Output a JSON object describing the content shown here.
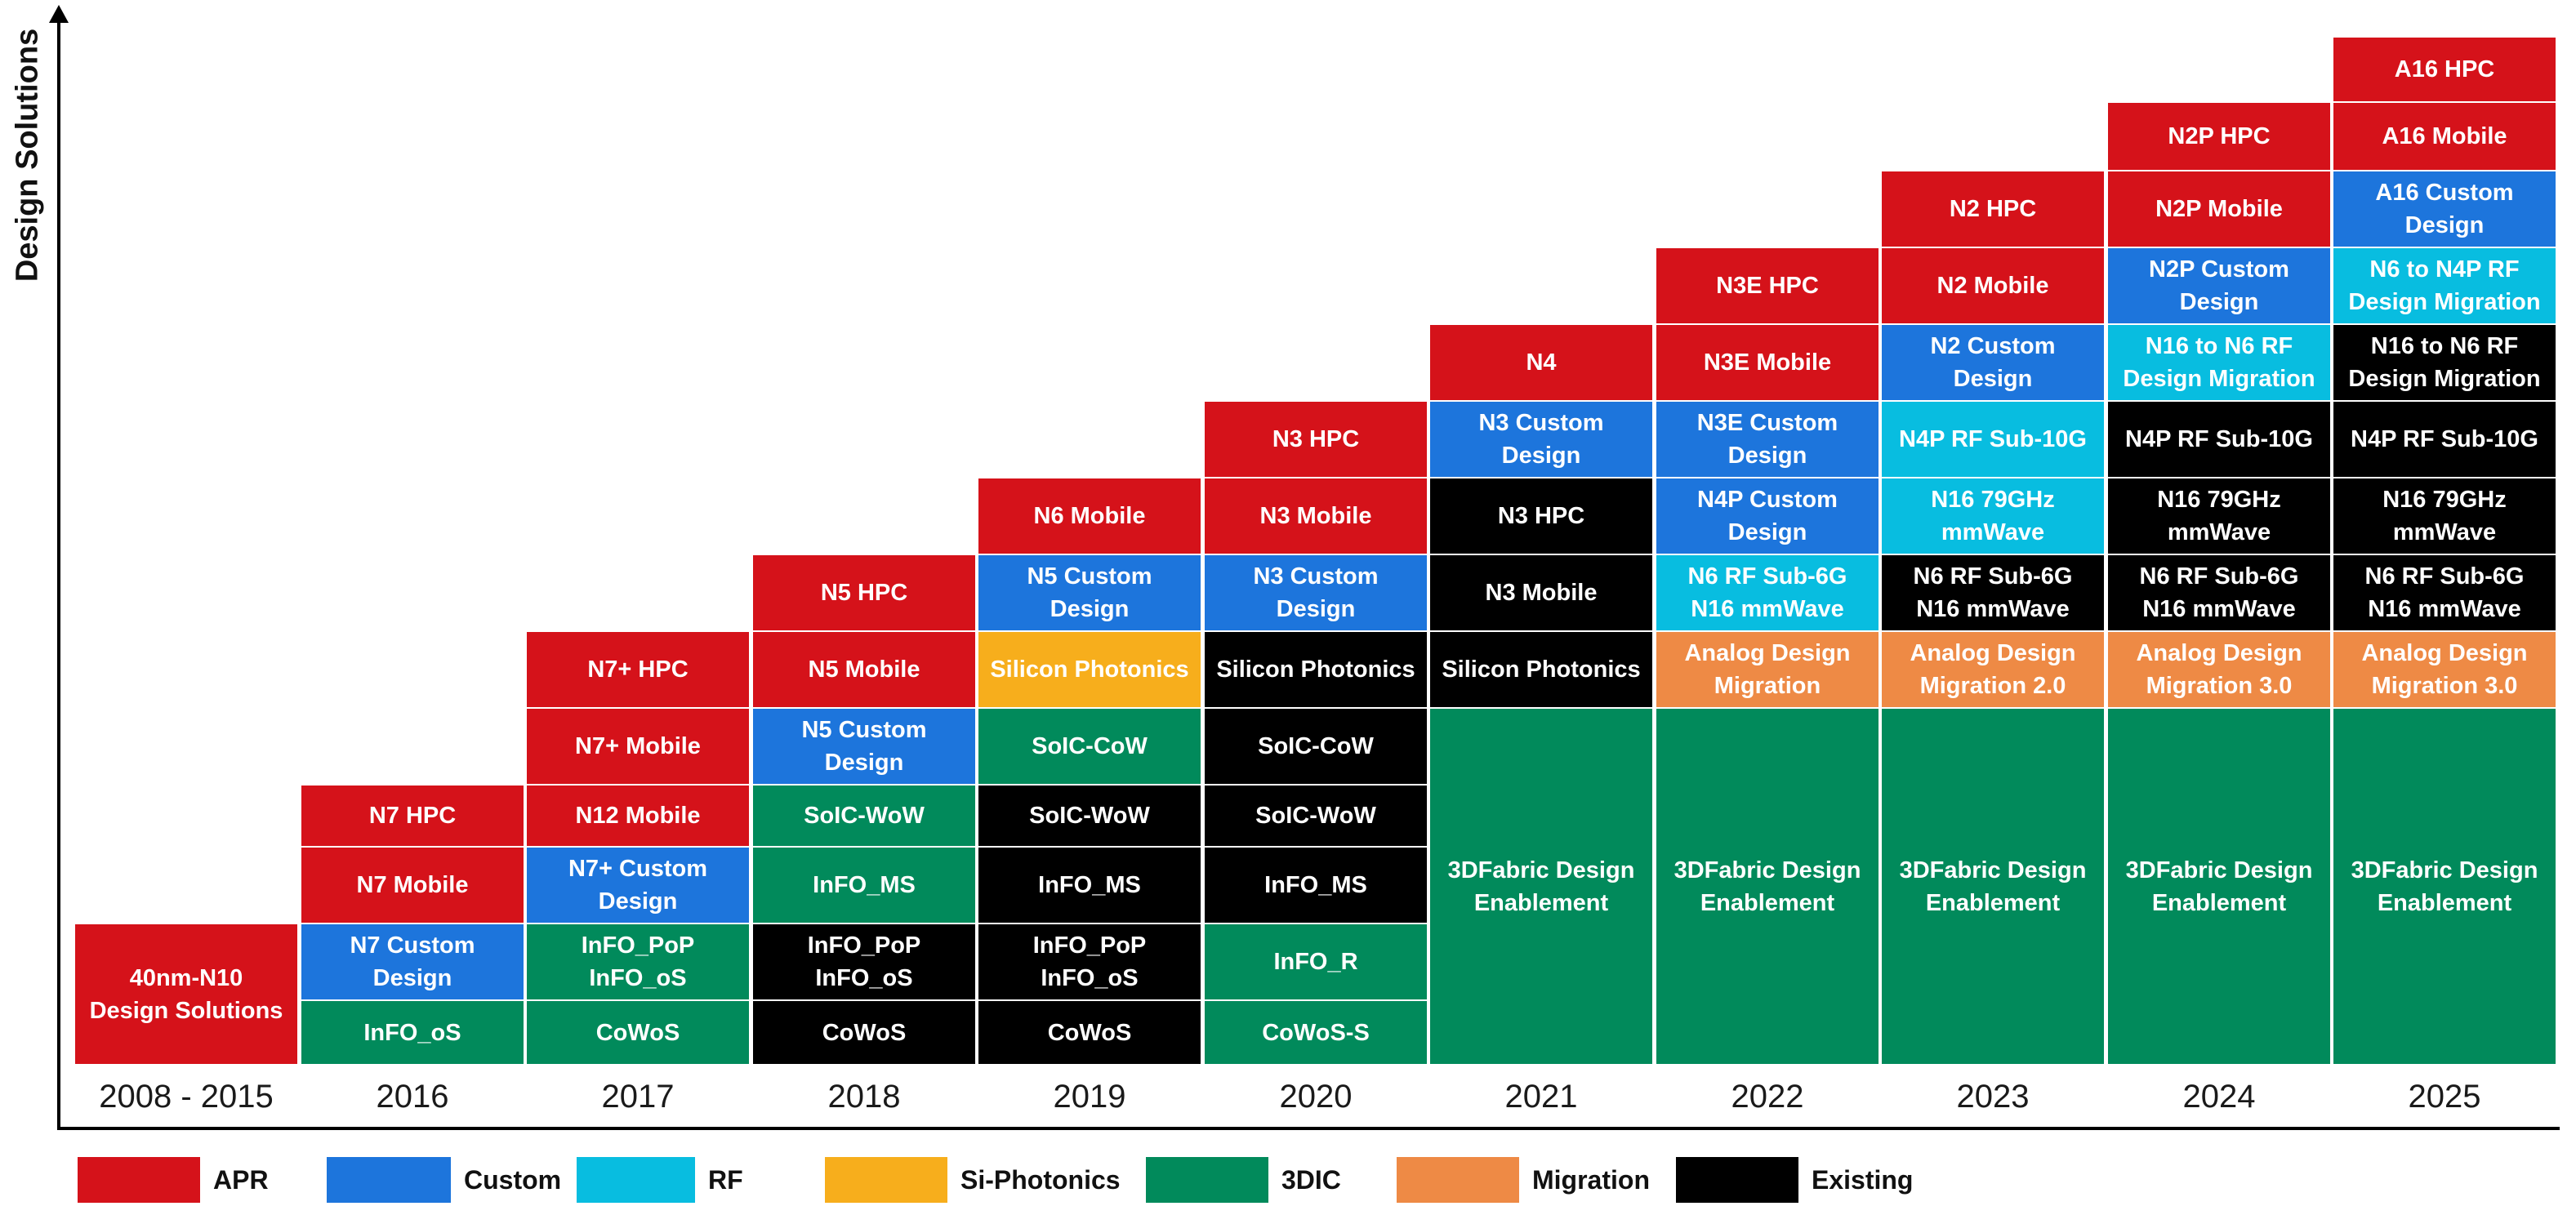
{
  "y_axis_label": "Design Solutions",
  "colors": {
    "APR": "#d5121a",
    "Custom": "#1d75dc",
    "RF": "#08bde0",
    "Si-Photonics": "#f7ae1c",
    "3DIC": "#018a5b",
    "Migration": "#ee8a45",
    "Existing": "#000000"
  },
  "legend": [
    {
      "label": "APR",
      "category": "APR"
    },
    {
      "label": "Custom",
      "category": "Custom"
    },
    {
      "label": "RF",
      "category": "RF"
    },
    {
      "label": "Si-Photonics",
      "category": "Si-Photonics"
    },
    {
      "label": "3DIC",
      "category": "3DIC"
    },
    {
      "label": "Migration",
      "category": "Migration"
    },
    {
      "label": "Existing",
      "category": "Existing"
    }
  ],
  "columns": [
    {
      "year": "2008 - 2015",
      "cells": [
        {
          "text": "40nm-N10\nDesign Solutions",
          "category": "APR",
          "span": 2
        }
      ]
    },
    {
      "year": "2016",
      "cells": [
        {
          "text": "InFO_oS",
          "category": "3DIC"
        },
        {
          "text": "N7 Custom\nDesign",
          "category": "Custom"
        },
        {
          "text": "N7 Mobile",
          "category": "APR"
        },
        {
          "text": "N7 HPC",
          "category": "APR"
        }
      ]
    },
    {
      "year": "2017",
      "cells": [
        {
          "text": "CoWoS",
          "category": "3DIC"
        },
        {
          "text": "InFO_PoP\nInFO_oS",
          "category": "3DIC"
        },
        {
          "text": "N7+ Custom\nDesign",
          "category": "Custom"
        },
        {
          "text": "N12 Mobile",
          "category": "APR"
        },
        {
          "text": "N7+ Mobile",
          "category": "APR"
        },
        {
          "text": "N7+ HPC",
          "category": "APR"
        }
      ]
    },
    {
      "year": "2018",
      "cells": [
        {
          "text": "CoWoS",
          "category": "Existing"
        },
        {
          "text": "InFO_PoP\nInFO_oS",
          "category": "Existing"
        },
        {
          "text": "InFO_MS",
          "category": "3DIC"
        },
        {
          "text": "SoIC-WoW",
          "category": "3DIC"
        },
        {
          "text": "N5 Custom\nDesign",
          "category": "Custom"
        },
        {
          "text": "N5 Mobile",
          "category": "APR"
        },
        {
          "text": "N5 HPC",
          "category": "APR"
        }
      ]
    },
    {
      "year": "2019",
      "cells": [
        {
          "text": "CoWoS",
          "category": "Existing"
        },
        {
          "text": "InFO_PoP\nInFO_oS",
          "category": "Existing"
        },
        {
          "text": "InFO_MS",
          "category": "Existing"
        },
        {
          "text": "SoIC-WoW",
          "category": "Existing"
        },
        {
          "text": "SoIC-CoW",
          "category": "3DIC"
        },
        {
          "text": "Silicon Photonics",
          "category": "Si-Photonics"
        },
        {
          "text": "N5 Custom\nDesign",
          "category": "Custom"
        },
        {
          "text": "N6 Mobile",
          "category": "APR"
        }
      ]
    },
    {
      "year": "2020",
      "cells": [
        {
          "text": "CoWoS-S",
          "category": "3DIC"
        },
        {
          "text": "InFO_R",
          "category": "3DIC"
        },
        {
          "text": "InFO_MS",
          "category": "Existing"
        },
        {
          "text": "SoIC-WoW",
          "category": "Existing"
        },
        {
          "text": "SoIC-CoW",
          "category": "Existing"
        },
        {
          "text": "Silicon Photonics",
          "category": "Existing"
        },
        {
          "text": "N3 Custom\nDesign",
          "category": "Custom"
        },
        {
          "text": "N3 Mobile",
          "category": "APR"
        },
        {
          "text": "N3 HPC",
          "category": "APR"
        }
      ]
    },
    {
      "year": "2021",
      "cells": [
        {
          "text": "3DFabric Design\nEnablement",
          "category": "3DIC",
          "span": 5
        },
        {
          "text": "Silicon Photonics",
          "category": "Existing"
        },
        {
          "text": "N3 Mobile",
          "category": "Existing"
        },
        {
          "text": "N3 HPC",
          "category": "Existing"
        },
        {
          "text": "N3 Custom\nDesign",
          "category": "Custom"
        },
        {
          "text": "N4",
          "category": "APR"
        }
      ]
    },
    {
      "year": "2022",
      "cells": [
        {
          "text": "3DFabric Design\nEnablement",
          "category": "3DIC",
          "span": 5
        },
        {
          "text": "Analog Design\nMigration",
          "category": "Migration"
        },
        {
          "text": "N6 RF Sub-6G\nN16 mmWave",
          "category": "RF"
        },
        {
          "text": "N4P Custom\nDesign",
          "category": "Custom"
        },
        {
          "text": "N3E Custom\nDesign",
          "category": "Custom"
        },
        {
          "text": "N3E Mobile",
          "category": "APR"
        },
        {
          "text": "N3E HPC",
          "category": "APR"
        }
      ]
    },
    {
      "year": "2023",
      "cells": [
        {
          "text": "3DFabric Design\nEnablement",
          "category": "3DIC",
          "span": 5
        },
        {
          "text": "Analog Design\nMigration 2.0",
          "category": "Migration"
        },
        {
          "text": "N6 RF Sub-6G\nN16 mmWave",
          "category": "Existing"
        },
        {
          "text": "N16 79GHz\nmmWave",
          "category": "RF"
        },
        {
          "text": "N4P RF Sub-10G",
          "category": "RF"
        },
        {
          "text": "N2 Custom\nDesign",
          "category": "Custom"
        },
        {
          "text": "N2 Mobile",
          "category": "APR"
        },
        {
          "text": "N2 HPC",
          "category": "APR"
        }
      ]
    },
    {
      "year": "2024",
      "cells": [
        {
          "text": "3DFabric Design\nEnablement",
          "category": "3DIC",
          "span": 5
        },
        {
          "text": "Analog Design\nMigration 3.0",
          "category": "Migration"
        },
        {
          "text": "N6 RF Sub-6G\nN16 mmWave",
          "category": "Existing"
        },
        {
          "text": "N16 79GHz\nmmWave",
          "category": "Existing"
        },
        {
          "text": "N4P RF Sub-10G",
          "category": "Existing"
        },
        {
          "text": "N16 to N6 RF\nDesign Migration",
          "category": "RF"
        },
        {
          "text": "N2P Custom\nDesign",
          "category": "Custom"
        },
        {
          "text": "N2P Mobile",
          "category": "APR"
        },
        {
          "text": "N2P HPC",
          "category": "APR"
        }
      ]
    },
    {
      "year": "2025",
      "cells": [
        {
          "text": "3DFabric Design\nEnablement",
          "category": "3DIC",
          "span": 5
        },
        {
          "text": "Analog Design\nMigration 3.0",
          "category": "Migration"
        },
        {
          "text": "N6 RF Sub-6G\nN16 mmWave",
          "category": "Existing"
        },
        {
          "text": "N16 79GHz\nmmWave",
          "category": "Existing"
        },
        {
          "text": "N4P RF Sub-10G",
          "category": "Existing"
        },
        {
          "text": "N16 to N6 RF\nDesign Migration",
          "category": "Existing"
        },
        {
          "text": "N6 to N4P RF\nDesign Migration",
          "category": "RF"
        },
        {
          "text": "A16 Custom\nDesign",
          "category": "Custom"
        },
        {
          "text": "A16 Mobile",
          "category": "APR"
        },
        {
          "text": "A16 HPC",
          "category": "APR"
        }
      ]
    }
  ]
}
